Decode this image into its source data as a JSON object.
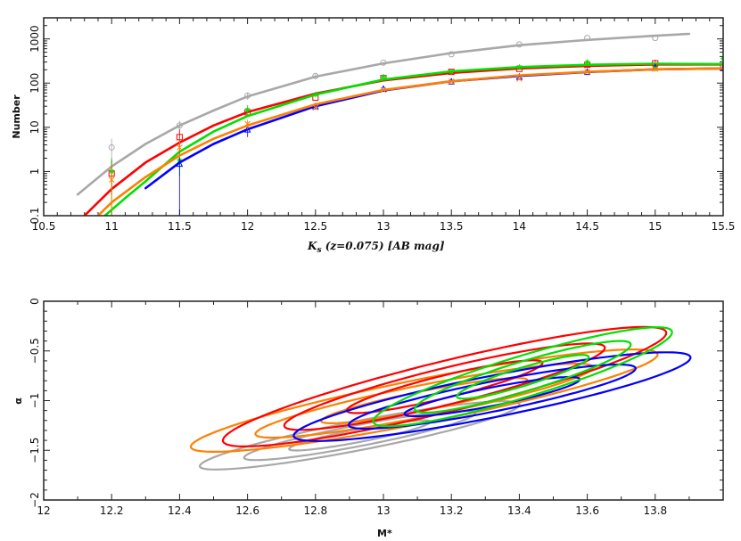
{
  "chart_data": [
    {
      "type": "line",
      "xlabel_main": "K",
      "xlabel_sub": "s",
      "xlabel_rest": " (z=0.075) [AB mag]",
      "ylabel": "Number",
      "xlim": [
        10.5,
        15.5
      ],
      "ylim": [
        0.1,
        3000
      ],
      "yscale": "log",
      "xticks": [
        "10.5",
        "11",
        "11.5",
        "12",
        "12.5",
        "13",
        "13.5",
        "14",
        "14.5",
        "15",
        "15.5"
      ],
      "yticks": [
        "0.1",
        "1",
        "10",
        "100",
        "1000"
      ],
      "grid": false,
      "series": [
        {
          "color": "#a8a8a8",
          "marker": "circle",
          "points": [
            {
              "x": 11,
              "y": 3.5,
              "lo": 0.8,
              "hi": 5.5
            },
            {
              "x": 11.5,
              "y": 11,
              "lo": 7,
              "hi": 14
            },
            {
              "x": 12,
              "y": 52,
              "lo": 42,
              "hi": 62
            },
            {
              "x": 12.5,
              "y": 145,
              "lo": 130,
              "hi": 160
            },
            {
              "x": 13,
              "y": 290
            },
            {
              "x": 13.5,
              "y": 450
            },
            {
              "x": 14,
              "y": 750
            },
            {
              "x": 14.5,
              "y": 1050
            },
            {
              "x": 15,
              "y": 1050
            }
          ],
          "curve": {
            "x": [
              10.75,
              11,
              11.25,
              11.5,
              11.75,
              12,
              12.5,
              13,
              13.5,
              14,
              14.5,
              15,
              15.25
            ],
            "y": [
              0.3,
              1.3,
              4.2,
              11,
              24,
              50,
              140,
              280,
              480,
              720,
              950,
              1180,
              1300
            ]
          }
        },
        {
          "color": "#ff0000",
          "marker": "square",
          "points": [
            {
              "x": 11,
              "y": 0.9,
              "lo": 0.3,
              "hi": 1.8
            },
            {
              "x": 11.5,
              "y": 6,
              "lo": 3,
              "hi": 9
            },
            {
              "x": 12,
              "y": 22
            },
            {
              "x": 12.5,
              "y": 47
            },
            {
              "x": 13,
              "y": 130
            },
            {
              "x": 13.5,
              "y": 180
            },
            {
              "x": 14,
              "y": 210
            },
            {
              "x": 14.5,
              "y": 260
            },
            {
              "x": 15,
              "y": 280,
              "lo": 230,
              "hi": 340
            },
            {
              "x": 15.5,
              "y": 230
            }
          ],
          "curve": {
            "x": [
              10.8,
              11,
              11.25,
              11.5,
              11.75,
              12,
              12.5,
              13,
              13.5,
              14,
              14.5,
              15,
              15.5
            ],
            "y": [
              0.1,
              0.4,
              1.6,
              4.5,
              11,
              22,
              58,
              115,
              170,
              215,
              245,
              265,
              265
            ]
          }
        },
        {
          "color": "#00e000",
          "marker": "star",
          "points": [
            {
              "x": 11,
              "y": 1.0,
              "lo": 0.1,
              "hi": 2
            },
            {
              "x": 11.5,
              "y": 1.8,
              "lo": 0.8,
              "hi": 3
            },
            {
              "x": 12,
              "y": 25,
              "lo": 18,
              "hi": 32
            },
            {
              "x": 12.5,
              "y": 55
            },
            {
              "x": 13,
              "y": 140
            },
            {
              "x": 13.5,
              "y": 180
            },
            {
              "x": 14,
              "y": 230
            },
            {
              "x": 14.5,
              "y": 300
            },
            {
              "x": 15,
              "y": 230,
              "lo": 180,
              "hi": 290
            },
            {
              "x": 15.5,
              "y": 360
            }
          ],
          "curve": {
            "x": [
              10.95,
              11.1,
              11.25,
              11.5,
              11.75,
              12,
              12.5,
              13,
              13.5,
              14,
              14.5,
              15,
              15.5
            ],
            "y": [
              0.1,
              0.25,
              0.6,
              2.8,
              8,
              18,
              55,
              120,
              185,
              230,
              260,
              275,
              270
            ]
          }
        },
        {
          "color": "#0000ff",
          "marker": "triangle",
          "points": [
            {
              "x": 11.5,
              "y": 1.5,
              "lo": 0.1,
              "hi": 3
            },
            {
              "x": 12,
              "y": 9,
              "lo": 6,
              "hi": 12
            },
            {
              "x": 12.5,
              "y": 30
            },
            {
              "x": 13,
              "y": 75
            },
            {
              "x": 13.5,
              "y": 110
            },
            {
              "x": 14,
              "y": 140
            },
            {
              "x": 14.5,
              "y": 180
            },
            {
              "x": 15,
              "y": 230
            },
            {
              "x": 15.5,
              "y": 220
            }
          ],
          "curve": {
            "x": [
              11.25,
              11.5,
              11.75,
              12,
              12.5,
              13,
              13.5,
              14,
              14.5,
              15,
              15.5
            ],
            "y": [
              0.42,
              1.6,
              4.2,
              9,
              30,
              68,
              110,
              145,
              178,
              205,
              215
            ]
          }
        },
        {
          "color": "#ff8000",
          "marker": "cross",
          "points": [
            {
              "x": 11,
              "y": 0.65,
              "lo": 0.1,
              "hi": 1.4
            },
            {
              "x": 11.5,
              "y": 3.5,
              "lo": 2,
              "hi": 5
            },
            {
              "x": 12,
              "y": 12,
              "lo": 9,
              "hi": 15
            },
            {
              "x": 12.5,
              "y": 28
            },
            {
              "x": 13,
              "y": 70
            },
            {
              "x": 13.5,
              "y": 110
            },
            {
              "x": 14,
              "y": 125
            },
            {
              "x": 14.5,
              "y": 180
            },
            {
              "x": 15,
              "y": 210
            }
          ],
          "curve": {
            "x": [
              10.9,
              11,
              11.25,
              11.5,
              11.75,
              12,
              12.5,
              13,
              13.5,
              14,
              14.5,
              15,
              15.5
            ],
            "y": [
              0.1,
              0.2,
              0.75,
              2.3,
              5.5,
              11,
              33,
              70,
              110,
              150,
              180,
              205,
              215
            ]
          }
        }
      ]
    },
    {
      "type": "contour",
      "xlabel": "M*",
      "ylabel": "α",
      "xlim": [
        12,
        14
      ],
      "ylim": [
        -2,
        0
      ],
      "xticks": [
        "12",
        "12.2",
        "12.4",
        "12.6",
        "12.8",
        "13",
        "13.2",
        "13.4",
        "13.6",
        "13.8"
      ],
      "yticks": [
        "0",
        "−0.5",
        "−1",
        "−1.5",
        "−2"
      ],
      "contour_levels_dchi2": [
        2.3,
        6.17,
        11.8
      ],
      "grid": false,
      "series": [
        {
          "color": "#a8a8a8",
          "center": {
            "M": 12.93,
            "alpha": -1.35
          },
          "sigma_M": 0.137,
          "sigma_alpha": 0.1,
          "rho": 0.9
        },
        {
          "color": "#ff8000",
          "center": {
            "M": 13.12,
            "alpha": -1.0
          },
          "sigma_M": 0.2,
          "sigma_alpha": 0.15,
          "rho": 0.9
        },
        {
          "color": "#ff0000",
          "center": {
            "M": 13.18,
            "alpha": -0.86
          },
          "sigma_M": 0.19,
          "sigma_alpha": 0.175,
          "rho": 0.9
        },
        {
          "color": "#0000ff",
          "center": {
            "M": 13.32,
            "alpha": -0.96
          },
          "sigma_M": 0.17,
          "sigma_alpha": 0.13,
          "rho": 0.88
        },
        {
          "color": "#00e000",
          "center": {
            "M": 13.41,
            "alpha": -0.76
          },
          "sigma_M": 0.128,
          "sigma_alpha": 0.145,
          "rho": 0.9
        }
      ]
    }
  ]
}
